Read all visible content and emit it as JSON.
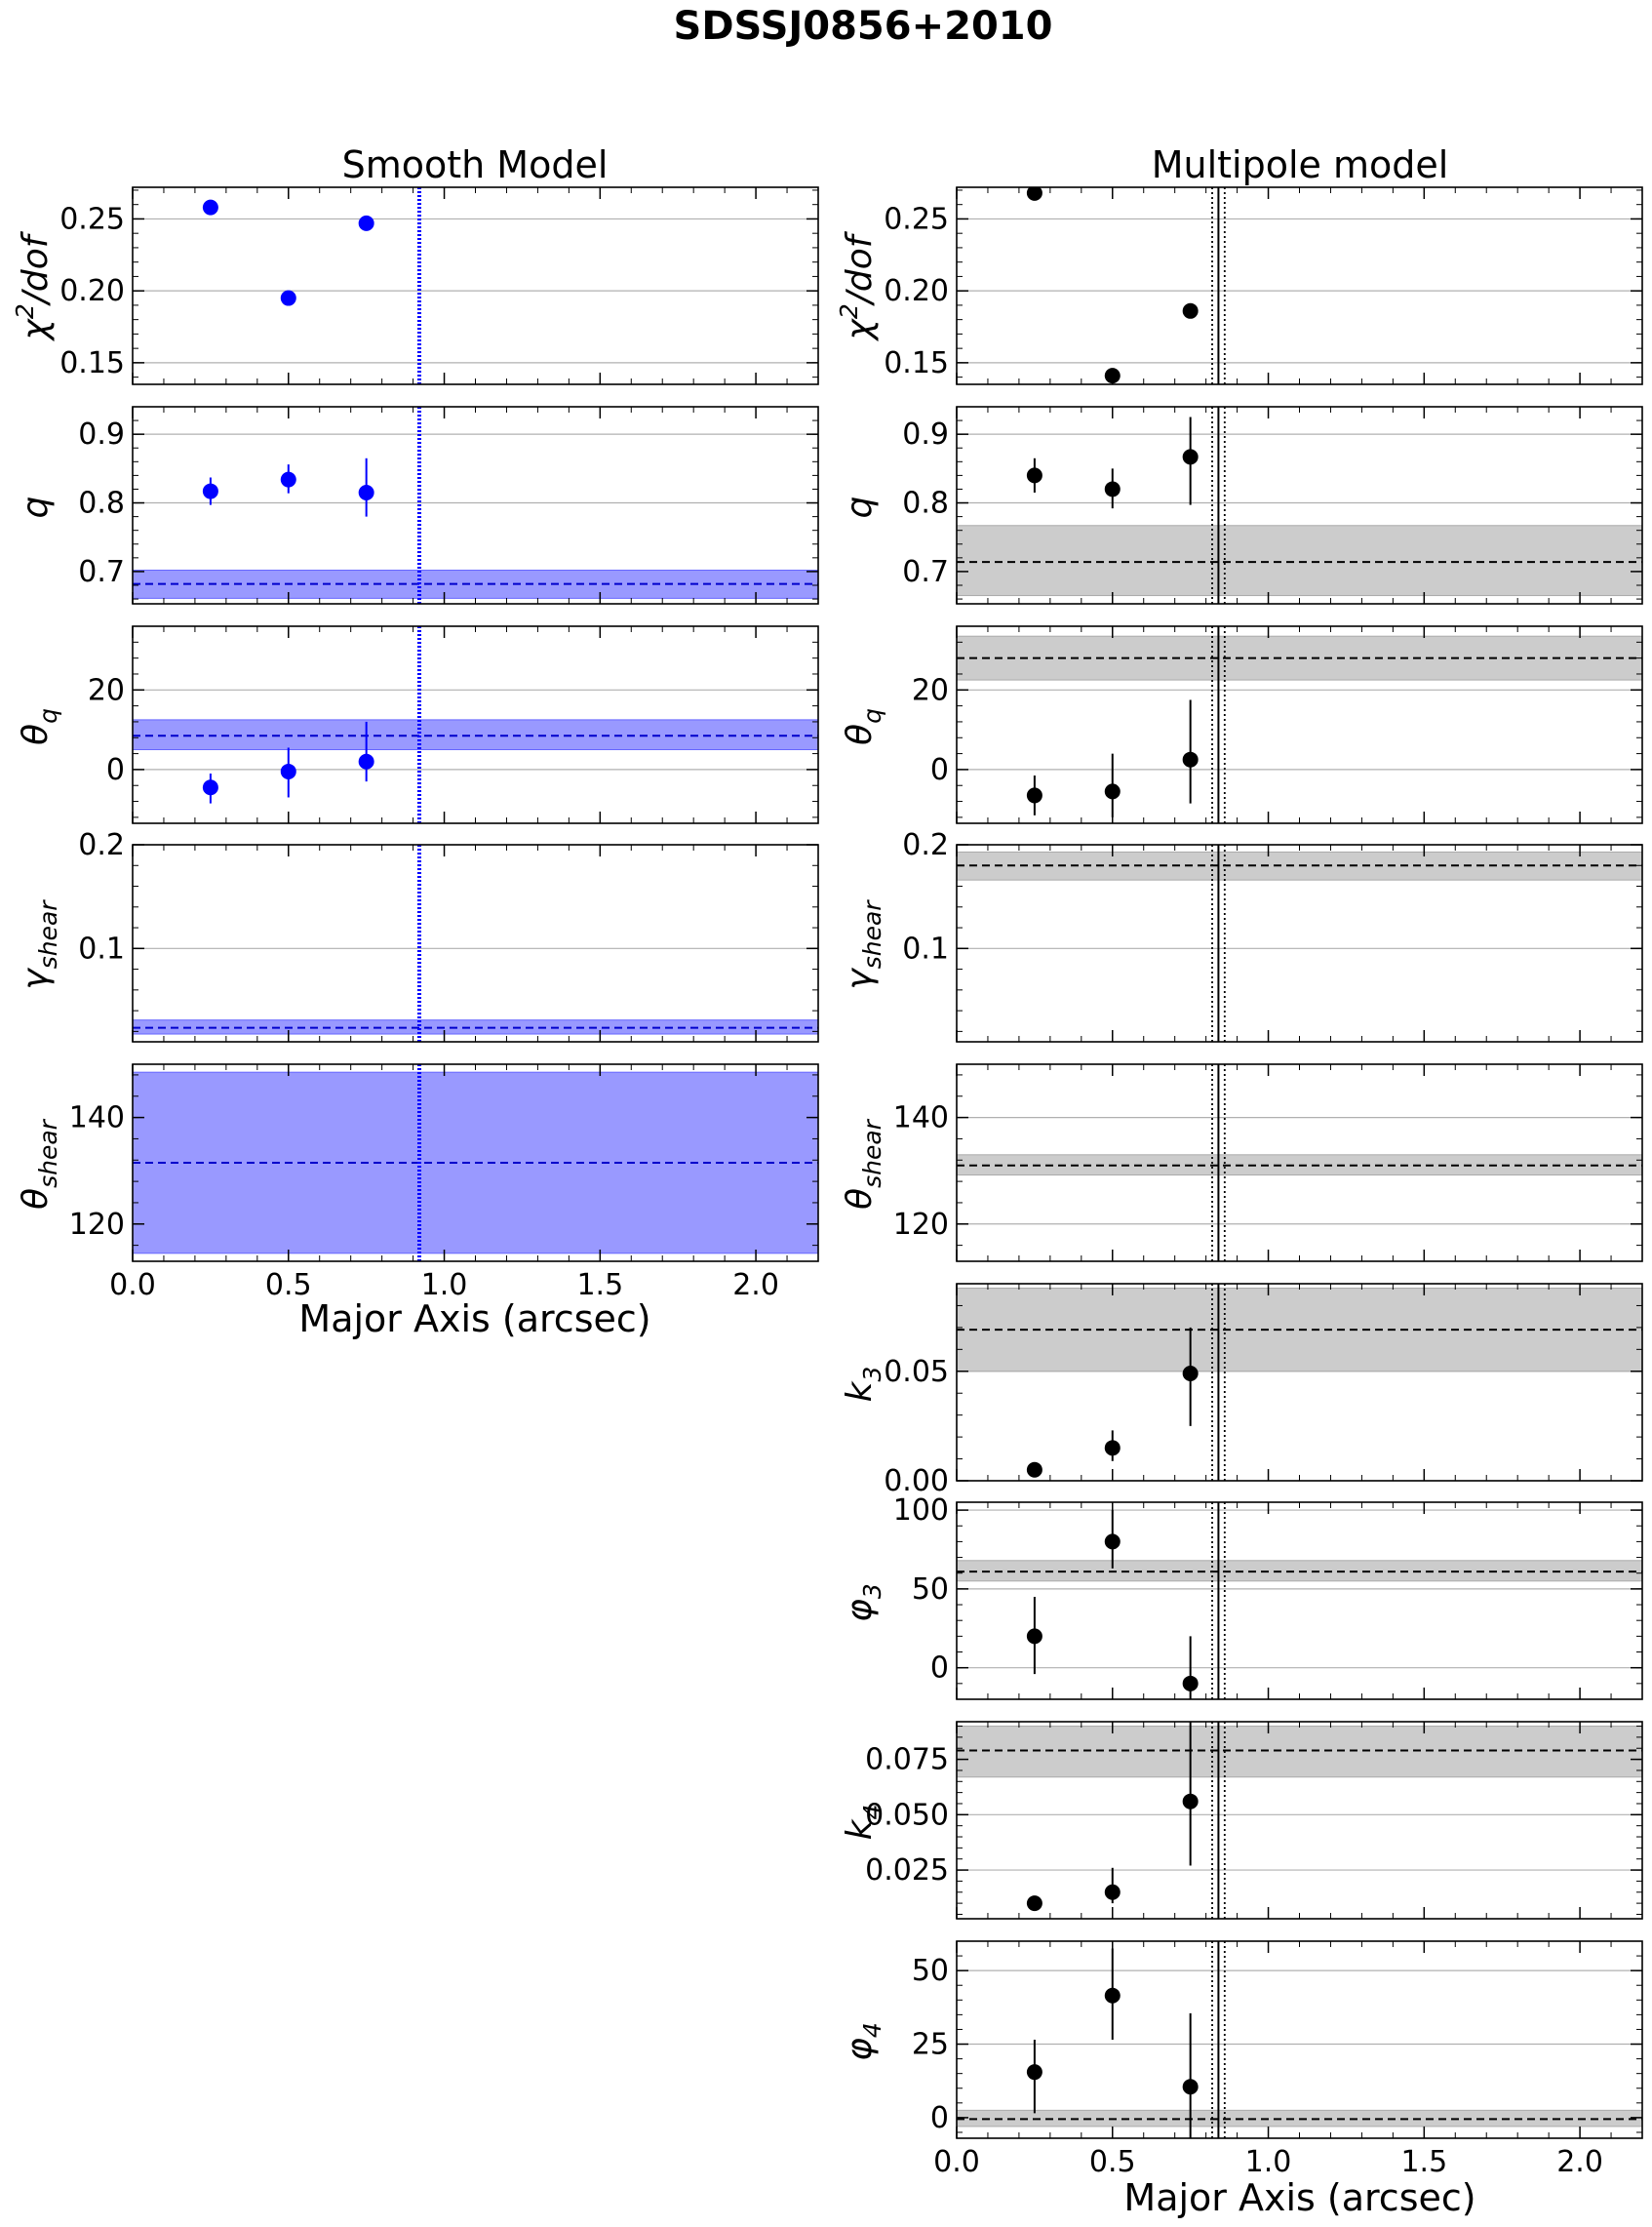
{
  "figure": {
    "title": "SDSSJ0856+2010",
    "columns": [
      {
        "title": "Smooth Model",
        "xlabel": "Major Axis (arcsec)"
      },
      {
        "title": "Multipole model",
        "xlabel": "Major Axis (arcsec)"
      }
    ],
    "x_ticks": [
      "0.0",
      "0.5",
      "1.0",
      "1.5",
      "2.0"
    ]
  },
  "chart_data": [
    {
      "type": "scatter",
      "title": "Smooth Model",
      "xlabel": "Major Axis (arcsec)",
      "xlim": [
        0,
        2.2
      ],
      "marker_color": "#0000ff",
      "band_color": "#9999ff",
      "vertical_lines": [
        {
          "x": 0.92,
          "style": "dotted",
          "color": "#0000ff"
        }
      ],
      "panels": [
        {
          "ylabel": "χ²/dof",
          "ylim": [
            0.135,
            0.272
          ],
          "yticks": [
            "0.15",
            "0.20",
            "0.25"
          ],
          "points": [
            {
              "x": 0.25,
              "y": 0.258
            },
            {
              "x": 0.5,
              "y": 0.195
            },
            {
              "x": 0.75,
              "y": 0.247
            }
          ]
        },
        {
          "ylabel": "q",
          "ylim": [
            0.653,
            0.94
          ],
          "yticks": [
            "0.7",
            "0.8",
            "0.9"
          ],
          "points": [
            {
              "x": 0.25,
              "y": 0.817,
              "err": [
                0.02,
                0.02
              ]
            },
            {
              "x": 0.5,
              "y": 0.834,
              "err": [
                0.02,
                0.022
              ]
            },
            {
              "x": 0.75,
              "y": 0.815,
              "err": [
                0.035,
                0.05
              ]
            }
          ],
          "band": {
            "value": 0.682,
            "low": 0.661,
            "high": 0.702
          }
        },
        {
          "ylabel": "θ_q",
          "ylim": [
            -13.5,
            36
          ],
          "yticks": [
            "0",
            "20"
          ],
          "points": [
            {
              "x": 0.25,
              "y": -4.5,
              "err": [
                4,
                3.5
              ]
            },
            {
              "x": 0.5,
              "y": -0.5,
              "err": [
                6.5,
                6
              ]
            },
            {
              "x": 0.75,
              "y": 2.0,
              "err": [
                5,
                10
              ]
            }
          ],
          "band": {
            "value": 8.5,
            "low": 5,
            "high": 12.5
          }
        },
        {
          "ylabel": "γ_shear",
          "ylim": [
            0.01,
            0.2
          ],
          "yticks": [
            "0.1",
            "0.2"
          ],
          "points": [],
          "band": {
            "value": 0.0235,
            "low": 0.0175,
            "high": 0.031
          }
        },
        {
          "ylabel": "θ_shear",
          "ylim": [
            113,
            150
          ],
          "yticks": [
            "120",
            "140"
          ],
          "points": [],
          "band": {
            "value": 131.5,
            "low": 114.5,
            "high": 148.5
          }
        }
      ]
    },
    {
      "type": "scatter",
      "title": "Multipole model",
      "xlabel": "Major Axis (arcsec)",
      "xlim": [
        0,
        2.2
      ],
      "marker_color": "#000000",
      "band_color": "#cccccc",
      "vertical_lines": [
        {
          "x": 0.82,
          "style": "dotted",
          "color": "#000000"
        },
        {
          "x": 0.84,
          "style": "solid",
          "color": "#000000"
        },
        {
          "x": 0.86,
          "style": "dotted",
          "color": "#000000"
        }
      ],
      "panels": [
        {
          "ylabel": "χ²/dof",
          "ylim": [
            0.135,
            0.272
          ],
          "yticks": [
            "0.15",
            "0.20",
            "0.25"
          ],
          "points": [
            {
              "x": 0.25,
              "y": 0.268
            },
            {
              "x": 0.5,
              "y": 0.141
            },
            {
              "x": 0.75,
              "y": 0.186
            }
          ]
        },
        {
          "ylabel": "q",
          "ylim": [
            0.653,
            0.94
          ],
          "yticks": [
            "0.7",
            "0.8",
            "0.9"
          ],
          "points": [
            {
              "x": 0.25,
              "y": 0.84,
              "err": [
                0.025,
                0.025
              ]
            },
            {
              "x": 0.5,
              "y": 0.82,
              "err": [
                0.028,
                0.03
              ]
            },
            {
              "x": 0.75,
              "y": 0.867,
              "err": [
                0.07,
                0.058
              ]
            }
          ],
          "band": {
            "value": 0.714,
            "low": 0.665,
            "high": 0.767
          }
        },
        {
          "ylabel": "θ_q",
          "ylim": [
            -13.5,
            36
          ],
          "yticks": [
            "0",
            "20"
          ],
          "points": [
            {
              "x": 0.25,
              "y": -6.5,
              "err": [
                5,
                5
              ]
            },
            {
              "x": 0.5,
              "y": -5.5,
              "err": [
                6.5,
                9.5
              ]
            },
            {
              "x": 0.75,
              "y": 2.5,
              "err": [
                11,
                15
              ]
            }
          ],
          "band": {
            "value": 28,
            "low": 22.5,
            "high": 33.5
          }
        },
        {
          "ylabel": "γ_shear",
          "ylim": [
            0.01,
            0.2
          ],
          "yticks": [
            "0.1",
            "0.2"
          ],
          "points": [],
          "band": {
            "value": 0.18,
            "low": 0.166,
            "high": 0.193
          }
        },
        {
          "ylabel": "θ_shear",
          "ylim": [
            113,
            150
          ],
          "yticks": [
            "120",
            "140"
          ],
          "points": [],
          "band": {
            "value": 131,
            "low": 129.2,
            "high": 133
          }
        },
        {
          "ylabel": "k_3",
          "ylim": [
            0,
            0.09
          ],
          "yticks": [
            "0.00",
            "0.05"
          ],
          "points": [
            {
              "x": 0.25,
              "y": 0.005
            },
            {
              "x": 0.5,
              "y": 0.015,
              "err": [
                0.006,
                0.008
              ]
            },
            {
              "x": 0.75,
              "y": 0.049,
              "err": [
                0.024,
                0.021
              ]
            }
          ],
          "band": {
            "value": 0.069,
            "low": 0.05,
            "high": 0.088
          }
        },
        {
          "ylabel": "φ_3",
          "ylim": [
            -20,
            105
          ],
          "yticks": [
            "0",
            "50",
            "100"
          ],
          "points": [
            {
              "x": 0.25,
              "y": 20,
              "err": [
                24,
                25
              ]
            },
            {
              "x": 0.5,
              "y": 80,
              "err": [
                17,
                20
              ]
            },
            {
              "x": 0.75,
              "y": -10,
              "err": [
                20,
                30
              ]
            }
          ],
          "band": {
            "value": 61,
            "low": 55,
            "high": 68
          }
        },
        {
          "ylabel": "k_4",
          "ylim": [
            0.003,
            0.092
          ],
          "yticks": [
            "0.025",
            "0.050",
            "0.075"
          ],
          "points": [
            {
              "x": 0.25,
              "y": 0.01,
              "err": [
                0.003,
                0.003
              ]
            },
            {
              "x": 0.5,
              "y": 0.015,
              "err": [
                0.005,
                0.011
              ]
            },
            {
              "x": 0.75,
              "y": 0.056,
              "err": [
                0.029,
                0.036
              ]
            }
          ],
          "band": {
            "value": 0.079,
            "low": 0.067,
            "high": 0.09
          }
        },
        {
          "ylabel": "φ_4",
          "ylim": [
            -7,
            60
          ],
          "yticks": [
            "0",
            "25",
            "50"
          ],
          "points": [
            {
              "x": 0.25,
              "y": 15.5,
              "err": [
                14,
                11
              ]
            },
            {
              "x": 0.5,
              "y": 41.5,
              "err": [
                15,
                16
              ]
            },
            {
              "x": 0.75,
              "y": 10.5,
              "err": [
                28,
                25
              ]
            }
          ],
          "band": {
            "value": -0.5,
            "low": -3,
            "high": 2.5
          }
        }
      ]
    }
  ]
}
